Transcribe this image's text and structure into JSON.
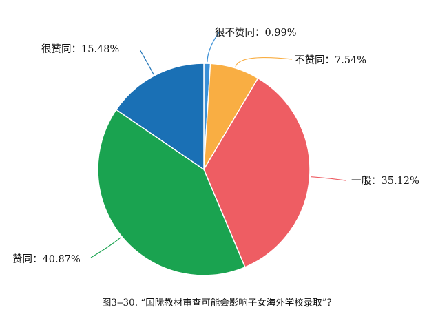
{
  "chart_data": {
    "type": "pie",
    "title": "",
    "slices": [
      {
        "label": "很不赞同",
        "value": 0.99,
        "text": "很不赞同：0.99%",
        "color": "#3a8fd6"
      },
      {
        "label": "不赞同",
        "value": 7.54,
        "text": "不赞同：7.54%",
        "color": "#f9ae43"
      },
      {
        "label": "一般",
        "value": 35.12,
        "text": "一般：35.12%",
        "color": "#ee5d63"
      },
      {
        "label": "赞同",
        "value": 40.87,
        "text": "赞同：40.87%",
        "color": "#1aa350"
      },
      {
        "label": "很赞同",
        "value": 15.48,
        "text": "很赞同：15.48%",
        "color": "#1a70b5"
      }
    ],
    "start": "top",
    "direction": "clockwise",
    "legend": "none"
  },
  "caption": "图3‒30. “国际教材审查可能会影响子女海外学校录取”？"
}
